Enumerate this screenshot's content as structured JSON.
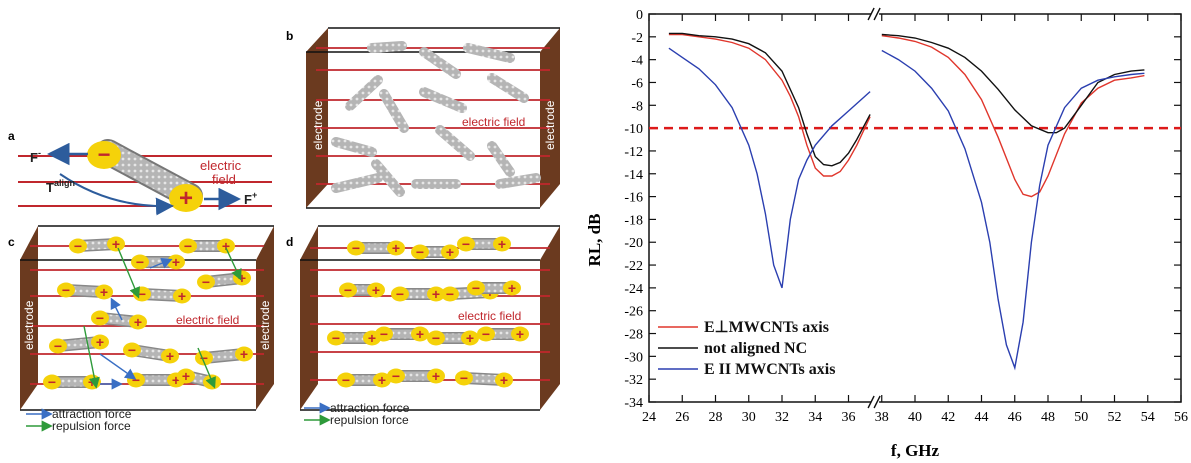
{
  "diagram": {
    "panel_a": {
      "letter": "a",
      "f_minus_label": "F",
      "f_minus_sup": "-",
      "f_plus_label": "F",
      "f_plus_sup": "+",
      "torque_label": "T",
      "torque_sup": "align",
      "field_label_line1": "electric",
      "field_label_line2": "field"
    },
    "panel_b": {
      "letter": "b",
      "electrode_label": "electrode",
      "field_label": "electric field"
    },
    "panel_c": {
      "letter": "c",
      "electrode_label": "electrode",
      "field_label": "electric field",
      "legend_attraction": "attraction force",
      "legend_repulsion": "repulsion force"
    },
    "panel_d": {
      "letter": "d",
      "electrode_label": "electrode",
      "field_label": "electric field",
      "legend_attraction": "attraction force",
      "legend_repulsion": "repulsion force"
    },
    "colors": {
      "field_line": "#c0272d",
      "electrode": "#6b3a1f",
      "tube": "#a8a8a8",
      "charge_blob": "#f5d20a",
      "attraction": "#3a6fc4",
      "repulsion": "#2e9a3a"
    },
    "charge_symbols": {
      "plus": "+",
      "minus": "−"
    }
  },
  "chart_data": {
    "type": "line",
    "xlabel": "f, GHz",
    "ylabel": "RL, dB",
    "xlim": [
      24,
      56
    ],
    "ylim": [
      -34,
      0
    ],
    "broken_x_axis": true,
    "x_break_at": 37.6,
    "xticks": [
      24,
      26,
      28,
      30,
      32,
      34,
      36,
      38,
      40,
      42,
      44,
      46,
      48,
      50,
      52,
      54,
      56
    ],
    "yticks": [
      0,
      -2,
      -4,
      -6,
      -8,
      -10,
      -12,
      -14,
      -16,
      -18,
      -20,
      -22,
      -24,
      -26,
      -28,
      -30,
      -32,
      -34
    ],
    "reference_line": {
      "y": -10,
      "style": "dashed",
      "color": "#dd1a1a"
    },
    "legend_position": "bottom-left",
    "series": [
      {
        "name": "E⊥MWCNTs axis",
        "color": "#e0362c",
        "segments": [
          {
            "x": [
              25.2,
              26,
              27,
              28,
              29,
              30,
              31,
              32,
              32.5,
              33,
              33.5,
              34,
              34.5,
              35,
              35.5,
              36,
              36.5,
              37.3
            ],
            "y": [
              -1.8,
              -1.8,
              -2.0,
              -2.2,
              -2.5,
              -3.0,
              -4.0,
              -5.8,
              -7.2,
              -9.0,
              -11.5,
              -13.5,
              -14.2,
              -14.2,
              -13.8,
              -12.8,
              -11.5,
              -9.0
            ]
          },
          {
            "x": [
              38,
              39,
              40,
              41,
              42,
              43,
              44,
              45,
              46,
              46.5,
              47,
              47.5,
              48,
              49,
              50,
              51,
              52,
              53,
              53.8
            ],
            "y": [
              -1.9,
              -2.1,
              -2.4,
              -2.9,
              -3.8,
              -5.3,
              -7.5,
              -10.8,
              -14.5,
              -15.8,
              -16.0,
              -15.6,
              -14.2,
              -10.5,
              -7.8,
              -6.5,
              -5.8,
              -5.6,
              -5.4
            ]
          }
        ]
      },
      {
        "name": "not aligned NC",
        "color": "#111111",
        "segments": [
          {
            "x": [
              25.2,
              26,
              27,
              28,
              29,
              30,
              31,
              32,
              33,
              33.5,
              34,
              34.5,
              35,
              35.5,
              36,
              36.5,
              37.3
            ],
            "y": [
              -1.7,
              -1.7,
              -1.9,
              -2.0,
              -2.2,
              -2.6,
              -3.4,
              -5.0,
              -8.2,
              -10.5,
              -12.5,
              -13.2,
              -13.3,
              -13.0,
              -12.2,
              -11.0,
              -8.8
            ]
          },
          {
            "x": [
              38,
              39,
              40,
              41,
              42,
              43,
              44,
              45,
              46,
              47,
              48,
              48.5,
              49,
              50,
              51,
              52,
              53,
              53.8
            ],
            "y": [
              -1.8,
              -1.9,
              -2.1,
              -2.5,
              -3.0,
              -3.8,
              -5.0,
              -6.6,
              -8.4,
              -9.8,
              -10.4,
              -10.4,
              -10.0,
              -8.0,
              -6.0,
              -5.3,
              -5.0,
              -4.9
            ]
          }
        ]
      },
      {
        "name": "E II MWCNTs axis",
        "color": "#2b3fb0",
        "segments": [
          {
            "x": [
              25.2,
              26,
              27,
              28,
              29,
              30,
              30.5,
              31,
              31.5,
              32,
              32.5,
              33,
              33.5,
              34,
              35,
              36,
              37.3
            ],
            "y": [
              -3.0,
              -3.8,
              -4.8,
              -6.2,
              -8.2,
              -11.5,
              -14.0,
              -17.5,
              -22.0,
              -24.0,
              -18.0,
              -14.5,
              -12.8,
              -11.5,
              -9.8,
              -8.5,
              -6.8
            ]
          },
          {
            "x": [
              38,
              39,
              40,
              41,
              42,
              43,
              44,
              44.5,
              45,
              45.5,
              46,
              46.5,
              47,
              47.5,
              48,
              49,
              50,
              51,
              52,
              53,
              53.8
            ],
            "y": [
              -3.2,
              -4.0,
              -5.0,
              -6.5,
              -8.5,
              -11.8,
              -16.5,
              -20.0,
              -25.0,
              -29.0,
              -31.0,
              -27.0,
              -20.0,
              -15.0,
              -11.5,
              -8.2,
              -6.5,
              -5.8,
              -5.5,
              -5.3,
              -5.2
            ]
          }
        ]
      }
    ]
  }
}
